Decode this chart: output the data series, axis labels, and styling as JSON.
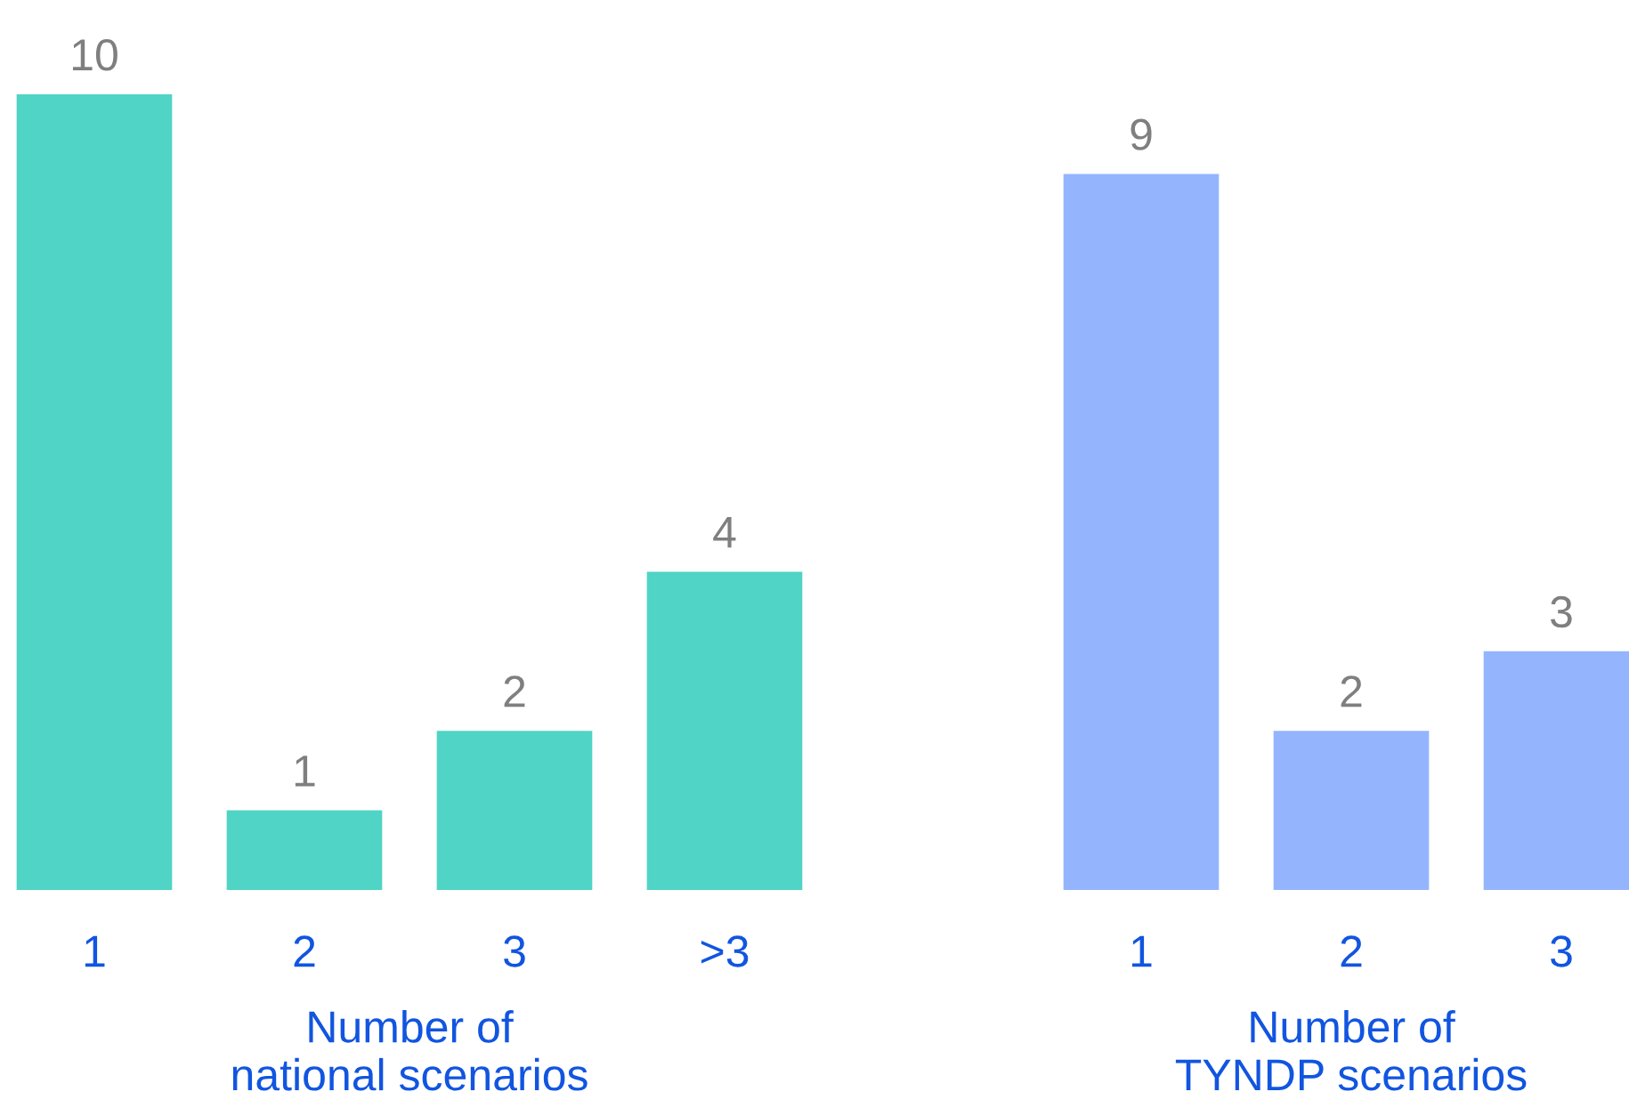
{
  "chart_data": [
    {
      "type": "bar",
      "xlabel": "Number of\nnational scenarios",
      "categories": [
        "1",
        "2",
        "3",
        ">3"
      ],
      "values": [
        10,
        1,
        2,
        4
      ],
      "color": "#4fd4c5",
      "data_labels": true,
      "grid": false,
      "legend": false
    },
    {
      "type": "bar",
      "xlabel": "Number of\nTYNDP scenarios",
      "categories": [
        "1",
        "2",
        "3"
      ],
      "values": [
        9,
        2,
        3
      ],
      "color": "#94b5fe",
      "data_labels": true,
      "grid": false,
      "legend": false
    }
  ]
}
